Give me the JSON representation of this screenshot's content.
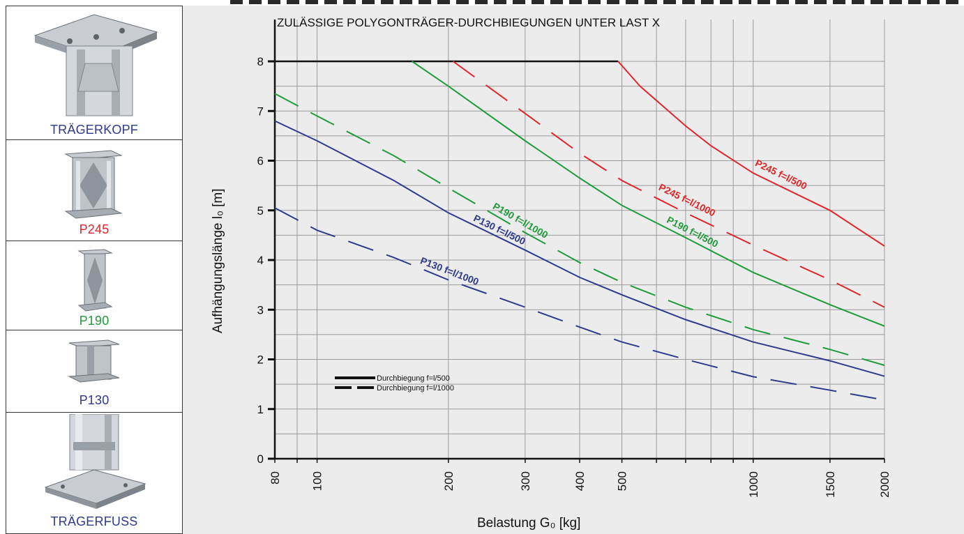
{
  "sidebar": {
    "panels": [
      {
        "label": "TRÄGERKOPF",
        "icon": "truss-head-icon",
        "color": "#2e3a8c"
      },
      {
        "label": "P245",
        "icon": "profile-p245-icon",
        "color": "#e0262b"
      },
      {
        "label": "P190",
        "icon": "profile-p190-icon",
        "color": "#1f9b3a"
      },
      {
        "label": "P130",
        "icon": "profile-p130-icon",
        "color": "#2e3a8c"
      },
      {
        "label": "TRÄGERFUSS",
        "icon": "truss-foot-icon",
        "color": "#2e3a8c"
      }
    ]
  },
  "chart_data": {
    "type": "line",
    "title": "ZULÄSSIGE POLYGONTRÄGER-DURCHBIEGUNGEN UNTER LAST X",
    "xlabel": "Belastung  G₀ [kg]",
    "ylabel": "Aufhängungslänge l₀ [m]",
    "x_scale": "log",
    "xlim": [
      80,
      2000
    ],
    "ylim": [
      0,
      8.4
    ],
    "x_ticks": [
      80,
      100,
      200,
      300,
      400,
      500,
      1000,
      1500,
      2000
    ],
    "x_gridlines": [
      80,
      90,
      100,
      200,
      300,
      400,
      500,
      600,
      700,
      800,
      900,
      1000,
      1500,
      2000
    ],
    "y_ticks": [
      0,
      1,
      2,
      3,
      4,
      5,
      6,
      7,
      8
    ],
    "grid": true,
    "background": "#ececec",
    "cap_line": {
      "y": 8,
      "x": [
        80,
        490
      ],
      "color": "#111111"
    },
    "series": [
      {
        "name": "P245 f=l/500",
        "label": "P245 f=l/500",
        "color": "#e0262b",
        "style": "solid",
        "points": [
          [
            490,
            8
          ],
          [
            550,
            7.5
          ],
          [
            700,
            6.7
          ],
          [
            800,
            6.3
          ],
          [
            1000,
            5.75
          ],
          [
            1500,
            5.0
          ],
          [
            2000,
            4.28
          ]
        ]
      },
      {
        "name": "P245 f=l/1000",
        "label": "P245    f=l/1000",
        "color": "#e0262b",
        "style": "dashed",
        "points": [
          [
            205,
            8
          ],
          [
            300,
            6.95
          ],
          [
            400,
            6.15
          ],
          [
            500,
            5.6
          ],
          [
            700,
            4.95
          ],
          [
            1000,
            4.3
          ],
          [
            1500,
            3.6
          ],
          [
            2000,
            3.05
          ]
        ]
      },
      {
        "name": "P190 f=l/500",
        "label": "P190  f=l/500",
        "color": "#1f9b3a",
        "style": "solid",
        "points": [
          [
            165,
            8
          ],
          [
            200,
            7.5
          ],
          [
            300,
            6.4
          ],
          [
            400,
            5.65
          ],
          [
            500,
            5.1
          ],
          [
            700,
            4.45
          ],
          [
            1000,
            3.75
          ],
          [
            1500,
            3.1
          ],
          [
            2000,
            2.67
          ]
        ]
      },
      {
        "name": "P190 f=l/1000",
        "label": "P190 f=l/1000",
        "color": "#1f9b3a",
        "style": "dashed",
        "points": [
          [
            80,
            7.35
          ],
          [
            100,
            6.9
          ],
          [
            150,
            6.1
          ],
          [
            200,
            5.45
          ],
          [
            300,
            4.55
          ],
          [
            400,
            3.95
          ],
          [
            500,
            3.55
          ],
          [
            700,
            3.05
          ],
          [
            1000,
            2.6
          ],
          [
            1500,
            2.2
          ],
          [
            2000,
            1.88
          ]
        ]
      },
      {
        "name": "P130 f=l/500",
        "label": "P130 f=l/500",
        "color": "#2e3a8c",
        "style": "solid",
        "points": [
          [
            80,
            6.8
          ],
          [
            100,
            6.4
          ],
          [
            150,
            5.6
          ],
          [
            200,
            4.95
          ],
          [
            300,
            4.2
          ],
          [
            400,
            3.65
          ],
          [
            500,
            3.3
          ],
          [
            700,
            2.8
          ],
          [
            1000,
            2.35
          ],
          [
            1500,
            1.97
          ],
          [
            2000,
            1.66
          ]
        ]
      },
      {
        "name": "P130 f=l/1000",
        "label": "P130 f=l/1000",
        "color": "#2e3a8c",
        "style": "dashed",
        "points": [
          [
            80,
            5.05
          ],
          [
            100,
            4.6
          ],
          [
            150,
            4.05
          ],
          [
            200,
            3.6
          ],
          [
            300,
            3.05
          ],
          [
            400,
            2.65
          ],
          [
            500,
            2.35
          ],
          [
            700,
            2.0
          ],
          [
            1000,
            1.65
          ],
          [
            1500,
            1.38
          ],
          [
            2000,
            1.18
          ]
        ]
      }
    ],
    "legend": {
      "placement": "bottom-left",
      "entries": [
        {
          "label": "Durchbiegung f=l/500",
          "style": "solid"
        },
        {
          "label": "Durchbiegung f=l/1000",
          "style": "dashed"
        }
      ]
    }
  }
}
